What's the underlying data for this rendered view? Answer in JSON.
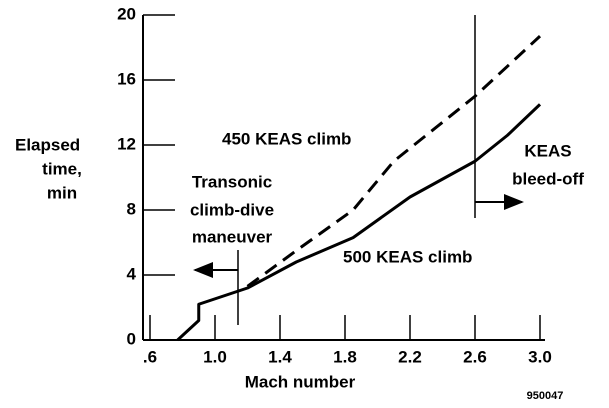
{
  "chart_data": {
    "type": "line",
    "y_label": [
      "Elapsed",
      "time,",
      "min"
    ],
    "x_label": "Mach number",
    "xlim": [
      0.6,
      3.0
    ],
    "xticks": [
      {
        "value": 0.6,
        "label": ".6"
      },
      {
        "value": 1.0,
        "label": "1.0"
      },
      1.4,
      1.8,
      2.2,
      2.6,
      {
        "value": 3.0,
        "label": "3.0"
      }
    ],
    "ylim": [
      0,
      20
    ],
    "yticks": [
      0,
      4,
      8,
      12,
      16,
      20
    ],
    "series": [
      {
        "name": "450 KEAS climb",
        "color": "#000",
        "dashed": true,
        "x": [
          1.2,
          1.5,
          1.85,
          2.1,
          2.6,
          3.0
        ],
        "values": [
          3.3,
          5.5,
          8,
          11,
          15,
          18.7
        ]
      },
      {
        "name": "500 KEAS climb",
        "color": "#000",
        "dashed": false,
        "x": [
          0.77,
          0.9,
          0.9,
          1.2,
          1.5,
          1.85,
          2.2,
          2.6,
          2.8,
          3.0
        ],
        "values": [
          0,
          1.2,
          2.2,
          3.2,
          4.8,
          6.3,
          8.8,
          11,
          12.6,
          14.5
        ]
      }
    ],
    "annotations": [
      {
        "lines": [
          "Transonic",
          "climb-dive",
          "maneuver"
        ]
      },
      {
        "lines": [
          "KEAS",
          "bleed-off"
        ]
      }
    ],
    "figure_number": "950047"
  }
}
